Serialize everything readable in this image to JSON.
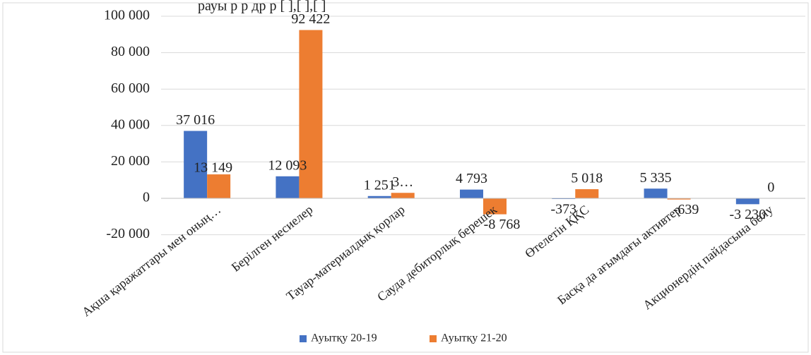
{
  "chart_data": {
    "type": "bar",
    "title": "рауы      р    р     др  р             [ ],[ ],[ ]",
    "xlabel": "",
    "ylabel": "",
    "ylim": [
      -20000,
      100000
    ],
    "yticks": [
      -20000,
      0,
      20000,
      40000,
      60000,
      80000,
      100000
    ],
    "ytick_labels": [
      "-20 000",
      "0",
      "20 000",
      "40 000",
      "60 000",
      "80 000",
      "100 000"
    ],
    "grid": true,
    "legend_position": "bottom",
    "categories": [
      "Ақша қаражаттары мен оның…",
      "Берілген несиелер",
      "Тауар-материалдық қорлар",
      "Сауда дебиторлық берешек",
      "Өтелетін ҚҚС",
      "Басқа да ағымдағы активтер",
      "Акционердің пайдасына бөлу"
    ],
    "series": [
      {
        "name": "Ауытқу 20-19",
        "color": "#4472c4",
        "values": [
          37016,
          12093,
          1251,
          4793,
          -373,
          5335,
          -3230
        ],
        "labels": [
          "37 016",
          "12 093",
          "1 251",
          "4 793",
          "-373",
          "5 335",
          "-3 230"
        ]
      },
      {
        "name": "Ауытқу 21-20",
        "color": "#ed7d31",
        "values": [
          13149,
          92422,
          3000,
          -8768,
          5018,
          -639,
          0
        ],
        "labels": [
          "13 149",
          "92 422",
          "3…",
          "-8 768",
          "5 018",
          "-639",
          "0"
        ]
      }
    ]
  }
}
